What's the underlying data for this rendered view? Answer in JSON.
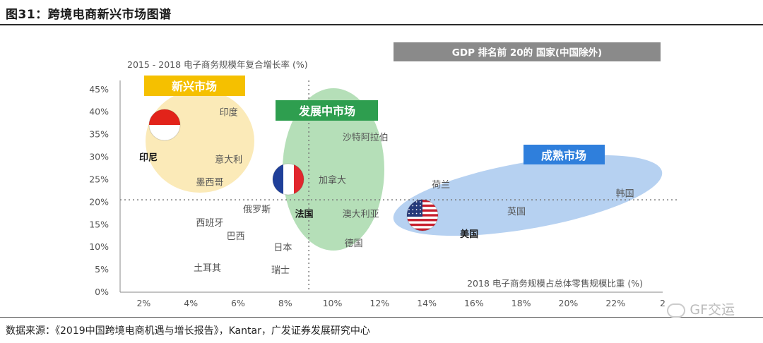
{
  "figure": {
    "title": "图31：跨境电商新兴市场图谱",
    "source": "数据来源：《2019中国跨境电商机遇与增长报告》，Kantar，广发证券发展研究中心",
    "watermark": "GF交运"
  },
  "chart_data": {
    "type": "scatter",
    "ylabel": "2015 - 2018 电子商务规模年复合增长率 (%)",
    "xlabel": "2018 电子商务规模占总体零售规模比重 (%)",
    "legend_box": "GDP 排名前 20的 国家(中国除外)",
    "x_ticks": [
      "2%",
      "4%",
      "6%",
      "8%",
      "10%",
      "12%",
      "14%",
      "16%",
      "18%",
      "20%",
      "22%",
      "2"
    ],
    "y_ticks": [
      "0%",
      "5%",
      "10%",
      "15%",
      "20%",
      "25%",
      "30%",
      "35%",
      "40%",
      "45%"
    ],
    "xlim": [
      1,
      24
    ],
    "ylim": [
      0,
      47
    ],
    "reference_lines": {
      "x": 9,
      "y": 20.5
    },
    "groups": [
      {
        "name": "新兴市场",
        "color": "#f5c542",
        "fill": "#fbe8b0"
      },
      {
        "name": "发展中市场",
        "color": "#2e9e4f",
        "fill": "#a8d9ac"
      },
      {
        "name": "成熟市场",
        "color": "#2f7fdc",
        "fill": "#a9c9ef"
      }
    ],
    "points": [
      {
        "label": "印度",
        "x": 5.6,
        "y": 40,
        "bold": false
      },
      {
        "label": "印尼",
        "x": 2.2,
        "y": 30,
        "bold": true,
        "flag": "indonesia"
      },
      {
        "label": "意大利",
        "x": 5.6,
        "y": 29.5,
        "bold": false
      },
      {
        "label": "墨西哥",
        "x": 4.8,
        "y": 24.5,
        "bold": false
      },
      {
        "label": "沙特阿拉伯",
        "x": 11.4,
        "y": 34.5,
        "bold": false
      },
      {
        "label": "加拿大",
        "x": 10,
        "y": 25,
        "bold": false
      },
      {
        "label": "法国",
        "x": 8.8,
        "y": 17.5,
        "bold": true,
        "flag": "france"
      },
      {
        "label": "澳大利亚",
        "x": 11.2,
        "y": 17.5,
        "bold": false
      },
      {
        "label": "俄罗斯",
        "x": 6.8,
        "y": 18.5,
        "bold": false
      },
      {
        "label": "西班牙",
        "x": 4.8,
        "y": 15.5,
        "bold": false
      },
      {
        "label": "巴西",
        "x": 5.9,
        "y": 12.5,
        "bold": false
      },
      {
        "label": "日本",
        "x": 7.9,
        "y": 10,
        "bold": false
      },
      {
        "label": "德国",
        "x": 10.9,
        "y": 11,
        "bold": false
      },
      {
        "label": "土耳其",
        "x": 4.7,
        "y": 5.5,
        "bold": false
      },
      {
        "label": "瑞士",
        "x": 7.8,
        "y": 5,
        "bold": false
      },
      {
        "label": "荷兰",
        "x": 14.6,
        "y": 24,
        "bold": false
      },
      {
        "label": "韩国",
        "x": 22.4,
        "y": 22,
        "bold": false
      },
      {
        "label": "英国",
        "x": 17.8,
        "y": 18,
        "bold": false
      },
      {
        "label": "美国",
        "x": 15.8,
        "y": 13,
        "bold": true,
        "flag": "usa"
      }
    ]
  }
}
